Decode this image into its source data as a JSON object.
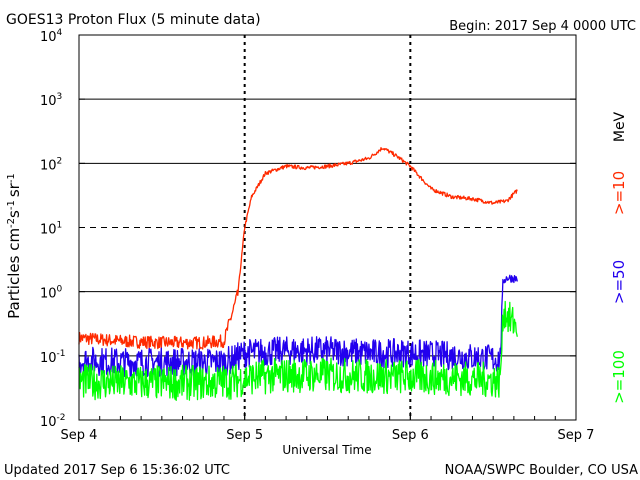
{
  "header": {
    "title": "GOES13 Proton Flux (5 minute data)",
    "begin": "Begin: 2017 Sep 4 0000 UTC"
  },
  "footer": {
    "updated": "Updated 2017 Sep  6 15:36:02 UTC",
    "credit": "NOAA/SWPC Boulder, CO USA"
  },
  "chart_data": {
    "type": "line",
    "title": "GOES13 Proton Flux (5 minute data)",
    "xlabel": "Universal Time",
    "ylabel": "Particles cm^-2 s^-1 sr^-1",
    "y_scale": "log",
    "ylim": [
      0.01,
      10000
    ],
    "xlim": [
      "2017-09-04 00:00",
      "2017-09-07 00:00"
    ],
    "x_ticks": [
      "Sep 4",
      "Sep 5",
      "Sep 6",
      "Sep 7"
    ],
    "y_ticks": [
      {
        "value": 0.01,
        "base": "10",
        "exp": "-2"
      },
      {
        "value": 0.1,
        "base": "10",
        "exp": "-1"
      },
      {
        "value": 1,
        "base": "10",
        "exp": "0"
      },
      {
        "value": 10,
        "base": "10",
        "exp": "1"
      },
      {
        "value": 100,
        "base": "10",
        "exp": "2"
      },
      {
        "value": 1000,
        "base": "10",
        "exp": "3"
      },
      {
        "value": 10000,
        "base": "10",
        "exp": "4"
      }
    ],
    "threshold": {
      "value": 10,
      "style": "dashed"
    },
    "unit_label": "MeV",
    "grid": "horizontal decades, dotted day lines",
    "series": [
      {
        "name": ">=10",
        "color": "#ff2a00",
        "x": [
          "2017-09-04 00:00",
          "2017-09-04 06:00",
          "2017-09-04 12:00",
          "2017-09-04 18:00",
          "2017-09-04 21:00",
          "2017-09-04 23:00",
          "2017-09-05 00:00",
          "2017-09-05 01:00",
          "2017-09-05 03:00",
          "2017-09-05 06:00",
          "2017-09-05 09:00",
          "2017-09-05 12:00",
          "2017-09-05 15:00",
          "2017-09-05 18:00",
          "2017-09-05 20:00",
          "2017-09-05 22:00",
          "2017-09-06 00:00",
          "2017-09-06 03:00",
          "2017-09-06 06:00",
          "2017-09-06 09:00",
          "2017-09-06 12:00",
          "2017-09-06 14:00",
          "2017-09-06 15:30"
        ],
        "values": [
          0.19,
          0.17,
          0.16,
          0.16,
          0.17,
          0.9,
          10,
          30,
          70,
          90,
          85,
          90,
          100,
          120,
          175,
          130,
          90,
          40,
          30,
          28,
          24,
          26,
          38
        ]
      },
      {
        "name": ">=50",
        "color": "#2200ee",
        "x": [
          "2017-09-04 00:00",
          "2017-09-04 06:00",
          "2017-09-04 12:00",
          "2017-09-04 18:00",
          "2017-09-04 21:00",
          "2017-09-04 22:30",
          "2017-09-05 00:00",
          "2017-09-05 06:00",
          "2017-09-05 12:00",
          "2017-09-05 18:00",
          "2017-09-06 00:00",
          "2017-09-06 06:00",
          "2017-09-06 12:00",
          "2017-09-06 13:00",
          "2017-09-06 13:30",
          "2017-09-06 14:00",
          "2017-09-06 15:30"
        ],
        "values": [
          0.085,
          0.08,
          0.08,
          0.08,
          0.08,
          0.09,
          0.11,
          0.12,
          0.12,
          0.11,
          0.11,
          0.1,
          0.09,
          0.09,
          1.5,
          1.65,
          1.6
        ]
      },
      {
        "name": ">=100",
        "color": "#00ff00",
        "x": [
          "2017-09-04 00:00",
          "2017-09-04 06:00",
          "2017-09-04 12:00",
          "2017-09-04 18:00",
          "2017-09-04 22:30",
          "2017-09-05 00:00",
          "2017-09-05 06:00",
          "2017-09-05 12:00",
          "2017-09-05 18:00",
          "2017-09-06 00:00",
          "2017-09-06 06:00",
          "2017-09-06 12:00",
          "2017-09-06 13:00",
          "2017-09-06 13:30",
          "2017-09-06 14:30",
          "2017-09-06 15:30"
        ],
        "values": [
          0.04,
          0.038,
          0.038,
          0.038,
          0.04,
          0.045,
          0.05,
          0.05,
          0.048,
          0.047,
          0.045,
          0.042,
          0.04,
          0.55,
          0.35,
          0.3
        ]
      }
    ]
  }
}
